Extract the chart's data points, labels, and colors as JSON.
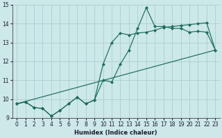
{
  "xlabel": "Humidex (Indice chaleur)",
  "xlim": [
    -0.5,
    23.5
  ],
  "ylim": [
    9,
    15
  ],
  "yticks": [
    9,
    10,
    11,
    12,
    13,
    14,
    15
  ],
  "xticks": [
    0,
    1,
    2,
    3,
    4,
    5,
    6,
    7,
    8,
    9,
    10,
    11,
    12,
    13,
    14,
    15,
    16,
    17,
    18,
    19,
    20,
    21,
    22,
    23
  ],
  "bg_color": "#cde8e8",
  "grid_color": "#aacece",
  "line_color": "#1a6b5a",
  "line1_x": [
    0,
    1,
    2,
    3,
    4,
    5,
    6,
    7,
    8,
    9,
    10,
    11,
    12,
    13,
    14,
    15,
    16,
    17,
    18,
    19,
    20,
    21,
    22,
    23
  ],
  "line1_y": [
    9.75,
    9.85,
    9.55,
    9.5,
    9.1,
    9.4,
    9.75,
    10.1,
    9.75,
    9.95,
    11.0,
    10.9,
    11.85,
    12.6,
    13.75,
    14.85,
    13.85,
    13.85,
    13.75,
    13.75,
    13.55,
    13.6,
    13.55,
    12.6
  ],
  "line2_x": [
    0,
    1,
    2,
    3,
    4,
    5,
    6,
    7,
    8,
    9,
    10,
    11,
    12,
    13,
    14,
    15,
    16,
    17,
    18,
    19,
    20,
    21,
    22,
    23
  ],
  "line2_y": [
    9.75,
    9.85,
    9.55,
    9.5,
    9.1,
    9.4,
    9.75,
    10.1,
    9.75,
    9.95,
    11.85,
    13.0,
    13.5,
    13.4,
    13.5,
    13.55,
    13.65,
    13.8,
    13.85,
    13.9,
    13.95,
    14.0,
    14.05,
    12.6
  ],
  "line3_x": [
    0,
    23
  ],
  "line3_y": [
    9.75,
    12.6
  ]
}
